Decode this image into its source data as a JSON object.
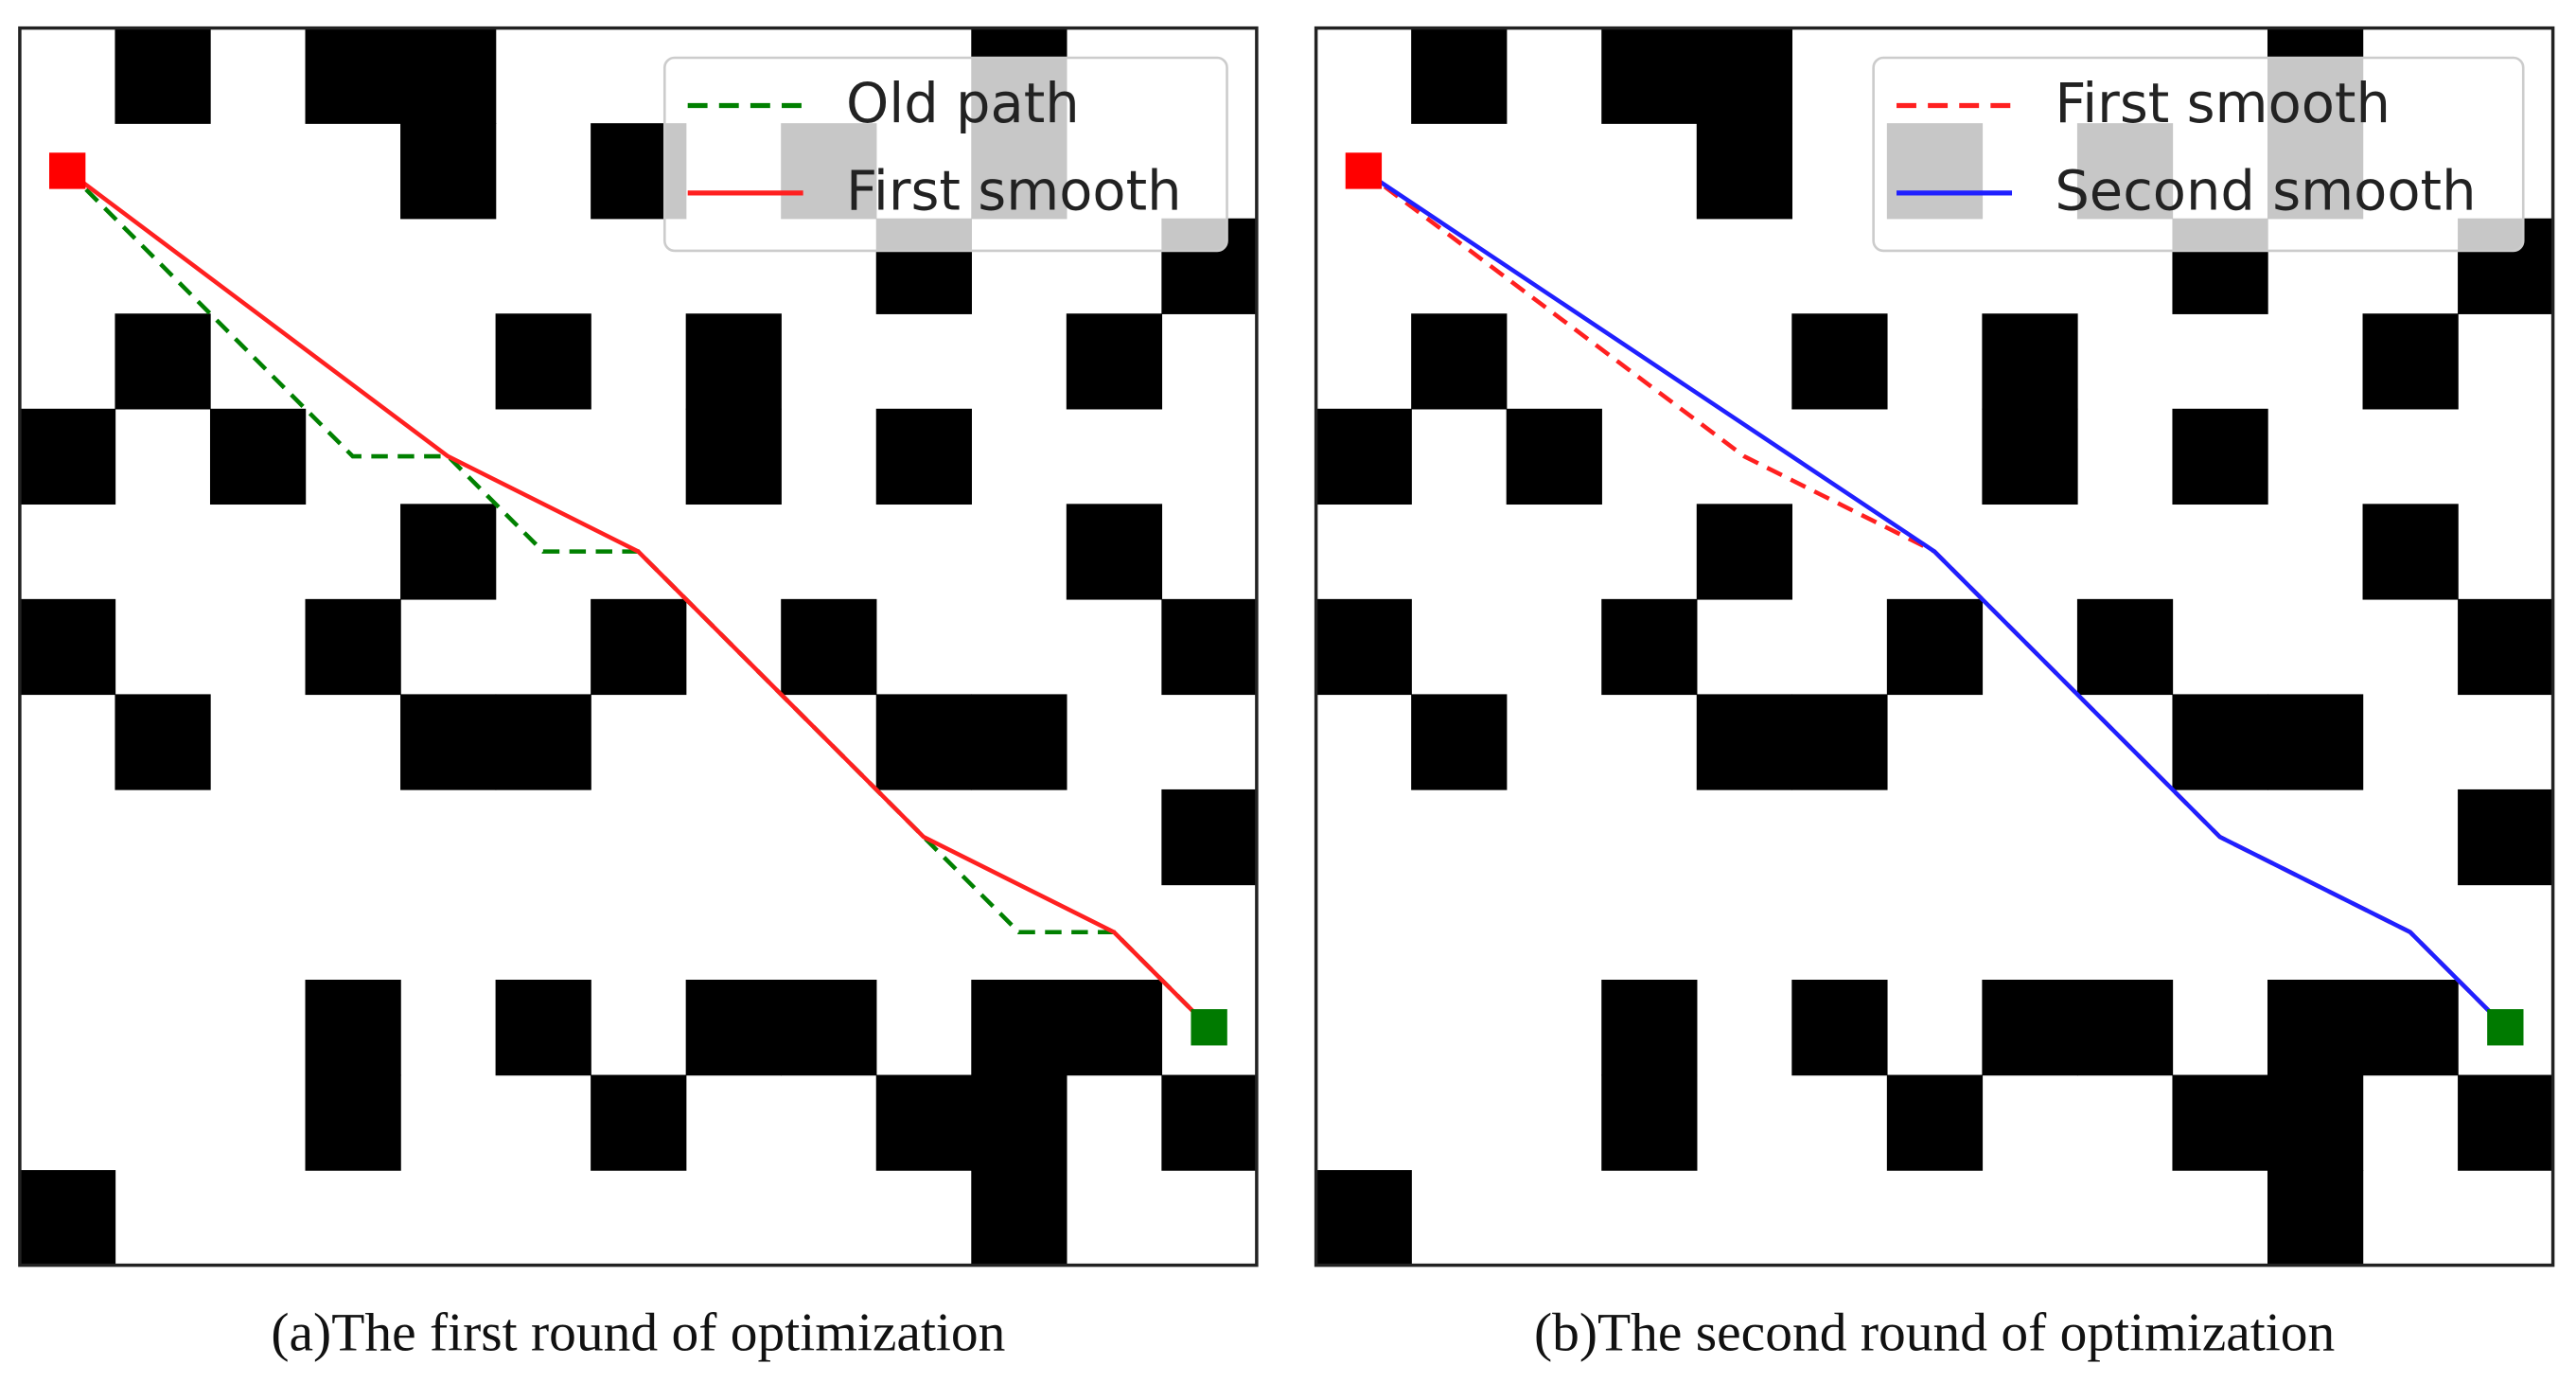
{
  "chart_data": [
    {
      "type": "line",
      "caption": "(a)The first round of optimization",
      "xlim": [
        0,
        13
      ],
      "ylim": [
        0,
        13
      ],
      "legend": "upper right",
      "obstacles": [
        [
          1,
          0
        ],
        [
          3,
          0
        ],
        [
          4,
          0
        ],
        [
          10,
          0
        ],
        [
          4,
          1
        ],
        [
          6,
          1
        ],
        [
          8,
          1
        ],
        [
          10,
          1
        ],
        [
          9,
          2
        ],
        [
          12,
          2
        ],
        [
          1,
          3
        ],
        [
          5,
          3
        ],
        [
          7,
          3
        ],
        [
          11,
          3
        ],
        [
          0,
          4
        ],
        [
          2,
          4
        ],
        [
          7,
          4
        ],
        [
          9,
          4
        ],
        [
          4,
          5
        ],
        [
          11,
          5
        ],
        [
          0,
          6
        ],
        [
          3,
          6
        ],
        [
          6,
          6
        ],
        [
          8,
          6
        ],
        [
          12,
          6
        ],
        [
          1,
          7
        ],
        [
          4,
          7
        ],
        [
          5,
          7
        ],
        [
          9,
          7
        ],
        [
          10,
          7
        ],
        [
          12,
          8
        ],
        [
          3,
          10
        ],
        [
          5,
          10
        ],
        [
          7,
          10
        ],
        [
          8,
          10
        ],
        [
          10,
          10
        ],
        [
          11,
          10
        ],
        [
          3,
          11
        ],
        [
          6,
          11
        ],
        [
          9,
          11
        ],
        [
          10,
          11
        ],
        [
          12,
          11
        ],
        [
          0,
          12
        ],
        [
          10,
          12
        ]
      ],
      "start": [
        0.5,
        1.5
      ],
      "goal": [
        12.5,
        10.5
      ],
      "series": [
        {
          "name": "Old path",
          "color": "#008000",
          "dashed": true,
          "x": [
            0.5,
            3.5,
            4.5,
            5.5,
            6.5,
            9.5,
            10.5,
            11.5,
            12.5
          ],
          "y": [
            1.5,
            4.5,
            4.5,
            5.5,
            5.5,
            8.5,
            9.5,
            9.5,
            10.5
          ]
        },
        {
          "name": "First smooth",
          "color": "#ff2020",
          "dashed": false,
          "x": [
            0.5,
            4.5,
            6.5,
            9.5,
            11.5,
            12.5
          ],
          "y": [
            1.5,
            4.5,
            5.5,
            8.5,
            9.5,
            10.5
          ]
        }
      ]
    },
    {
      "type": "line",
      "caption": "(b)The second round of optimization",
      "xlim": [
        0,
        13
      ],
      "ylim": [
        0,
        13
      ],
      "legend": "upper right",
      "obstacles": [
        [
          1,
          0
        ],
        [
          3,
          0
        ],
        [
          4,
          0
        ],
        [
          10,
          0
        ],
        [
          4,
          1
        ],
        [
          6,
          1
        ],
        [
          8,
          1
        ],
        [
          10,
          1
        ],
        [
          9,
          2
        ],
        [
          12,
          2
        ],
        [
          1,
          3
        ],
        [
          5,
          3
        ],
        [
          7,
          3
        ],
        [
          11,
          3
        ],
        [
          0,
          4
        ],
        [
          2,
          4
        ],
        [
          7,
          4
        ],
        [
          9,
          4
        ],
        [
          4,
          5
        ],
        [
          11,
          5
        ],
        [
          0,
          6
        ],
        [
          3,
          6
        ],
        [
          6,
          6
        ],
        [
          8,
          6
        ],
        [
          12,
          6
        ],
        [
          1,
          7
        ],
        [
          4,
          7
        ],
        [
          5,
          7
        ],
        [
          9,
          7
        ],
        [
          10,
          7
        ],
        [
          12,
          8
        ],
        [
          3,
          10
        ],
        [
          5,
          10
        ],
        [
          7,
          10
        ],
        [
          8,
          10
        ],
        [
          10,
          10
        ],
        [
          11,
          10
        ],
        [
          3,
          11
        ],
        [
          6,
          11
        ],
        [
          9,
          11
        ],
        [
          10,
          11
        ],
        [
          12,
          11
        ],
        [
          0,
          12
        ],
        [
          10,
          12
        ]
      ],
      "start": [
        0.5,
        1.5
      ],
      "goal": [
        12.5,
        10.5
      ],
      "series": [
        {
          "name": "First smooth",
          "color": "#ff2020",
          "dashed": true,
          "x": [
            0.5,
            4.5,
            6.5,
            9.5,
            11.5,
            12.5
          ],
          "y": [
            1.5,
            4.5,
            5.5,
            8.5,
            9.5,
            10.5
          ]
        },
        {
          "name": "Second smooth",
          "color": "#2020ff",
          "dashed": false,
          "x": [
            0.5,
            6.5,
            9.5,
            11.5,
            12.5
          ],
          "y": [
            1.5,
            5.5,
            8.5,
            9.5,
            10.5
          ]
        }
      ]
    }
  ]
}
